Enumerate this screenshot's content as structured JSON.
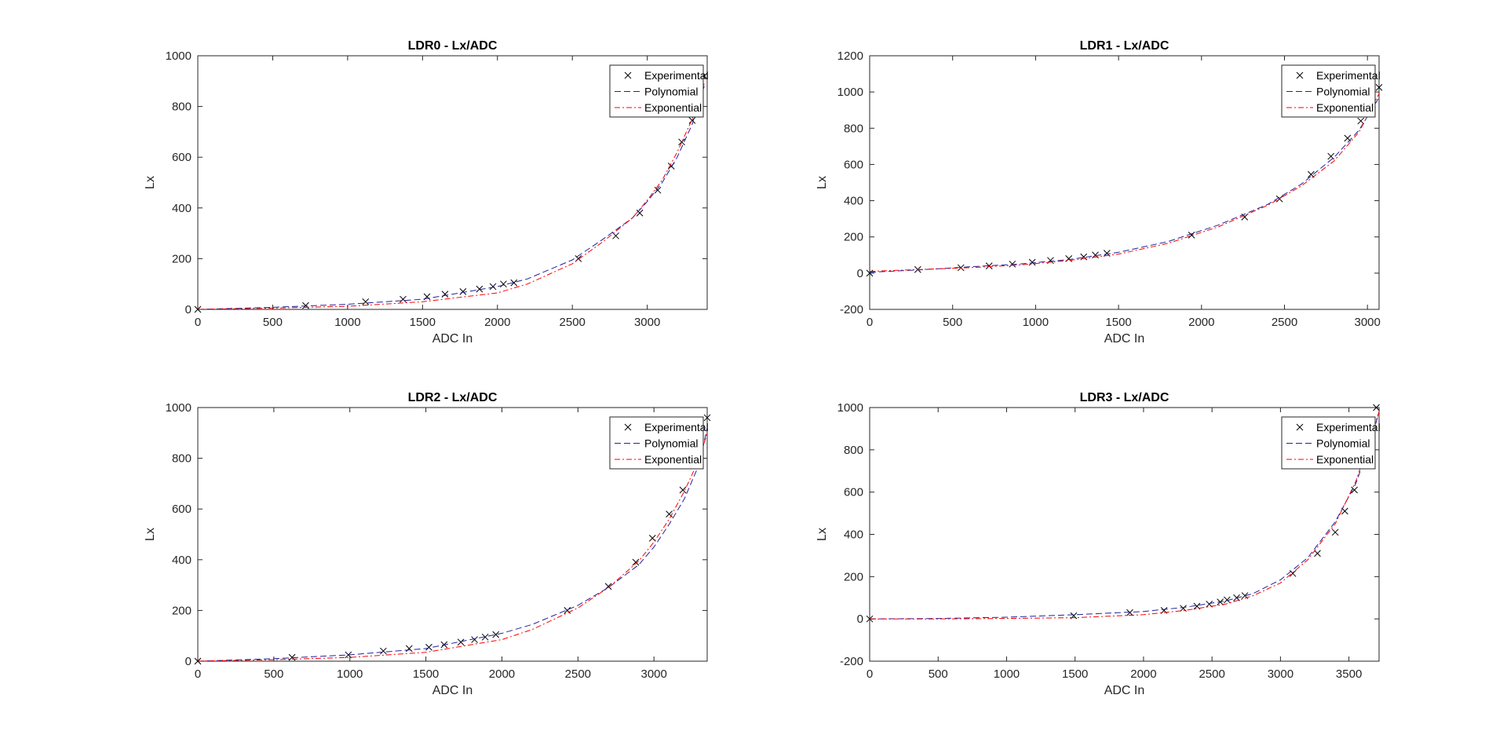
{
  "figure": {
    "background": "#ffffff"
  },
  "legend": {
    "entries": [
      "Experimental",
      "Polynomial",
      "Exponential"
    ],
    "location": "top-right"
  },
  "style": {
    "experimental_color": "#000000",
    "polynomial_color": "#2020a0",
    "exponential_color": "#ff0000",
    "axis_color": "#262626"
  },
  "chart_data": [
    {
      "type": "line",
      "title": "LDR0 - Lx/ADC",
      "xlabel": "ADC In",
      "ylabel": "Lx",
      "xlim": [
        0,
        3400
      ],
      "ylim": [
        0,
        1000
      ],
      "xticks": [
        0,
        500,
        1000,
        1500,
        2000,
        2500,
        3000
      ],
      "yticks": [
        0,
        200,
        400,
        600,
        800,
        1000
      ],
      "grid": false,
      "series": [
        {
          "name": "Experimental",
          "style": "markers-x",
          "x": [
            0,
            720,
            1120,
            1370,
            1530,
            1650,
            1770,
            1880,
            1970,
            2040,
            2110,
            2540,
            2790,
            2950,
            3070,
            3160,
            3230,
            3300,
            3350,
            3380
          ],
          "y": [
            0,
            15,
            30,
            40,
            50,
            60,
            70,
            80,
            90,
            100,
            105,
            200,
            290,
            380,
            470,
            565,
            660,
            745,
            845,
            920
          ]
        },
        {
          "name": "Polynomial",
          "style": "dashed",
          "x": [
            0,
            500,
            1000,
            1500,
            2000,
            2200,
            2500,
            2700,
            2900,
            3000,
            3100,
            3200,
            3300,
            3380
          ],
          "y": [
            0,
            8,
            20,
            40,
            90,
            120,
            195,
            275,
            360,
            425,
            500,
            600,
            730,
            880
          ]
        },
        {
          "name": "Exponential",
          "style": "dashdot",
          "x": [
            0,
            500,
            1000,
            1500,
            2000,
            2200,
            2500,
            2700,
            2900,
            3000,
            3100,
            3200,
            3300,
            3380
          ],
          "y": [
            0,
            5,
            12,
            30,
            65,
            100,
            180,
            265,
            360,
            430,
            510,
            620,
            750,
            890
          ]
        }
      ]
    },
    {
      "type": "line",
      "title": "LDR1 - Lx/ADC",
      "xlabel": "ADC In",
      "ylabel": "Lx",
      "xlim": [
        0,
        3070
      ],
      "ylim": [
        -200,
        1200
      ],
      "xticks": [
        0,
        500,
        1000,
        1500,
        2000,
        2500,
        3000
      ],
      "yticks": [
        -200,
        0,
        200,
        400,
        600,
        800,
        1000,
        1200
      ],
      "grid": false,
      "series": [
        {
          "name": "Experimental",
          "style": "markers-x",
          "x": [
            0,
            290,
            550,
            720,
            860,
            980,
            1090,
            1200,
            1290,
            1360,
            1430,
            1940,
            2260,
            2470,
            2660,
            2780,
            2880,
            2960,
            3030,
            3070
          ],
          "y": [
            0,
            20,
            30,
            40,
            50,
            60,
            70,
            80,
            90,
            100,
            110,
            210,
            310,
            410,
            545,
            645,
            745,
            840,
            930,
            1025
          ]
        },
        {
          "name": "Polynomial",
          "style": "dashed",
          "x": [
            0,
            300,
            600,
            900,
            1200,
            1500,
            1800,
            2100,
            2400,
            2600,
            2800,
            2950,
            3070
          ],
          "y": [
            5,
            18,
            35,
            50,
            75,
            115,
            175,
            265,
            380,
            490,
            640,
            790,
            970
          ]
        },
        {
          "name": "Exponential",
          "style": "dashdot",
          "x": [
            0,
            300,
            600,
            900,
            1200,
            1500,
            1800,
            2100,
            2400,
            2600,
            2800,
            2950,
            3070
          ],
          "y": [
            10,
            20,
            30,
            45,
            70,
            105,
            165,
            255,
            375,
            480,
            620,
            780,
            990
          ]
        }
      ]
    },
    {
      "type": "line",
      "title": "LDR2 - Lx/ADC",
      "xlabel": "ADC In",
      "ylabel": "Lx",
      "xlim": [
        0,
        3350
      ],
      "ylim": [
        0,
        1000
      ],
      "xticks": [
        0,
        500,
        1000,
        1500,
        2000,
        2500,
        3000
      ],
      "yticks": [
        0,
        200,
        400,
        600,
        800,
        1000
      ],
      "grid": false,
      "series": [
        {
          "name": "Experimental",
          "style": "markers-x",
          "x": [
            0,
            620,
            990,
            1220,
            1390,
            1520,
            1620,
            1730,
            1820,
            1890,
            1960,
            2430,
            2700,
            2880,
            2990,
            3100,
            3190,
            3300,
            3350
          ],
          "y": [
            0,
            15,
            25,
            40,
            50,
            55,
            65,
            75,
            85,
            95,
            105,
            200,
            295,
            390,
            485,
            580,
            675,
            875,
            960
          ]
        },
        {
          "name": "Polynomial",
          "style": "dashed",
          "x": [
            0,
            500,
            1000,
            1500,
            2000,
            2200,
            2500,
            2700,
            2900,
            3000,
            3100,
            3200,
            3300,
            3350
          ],
          "y": [
            0,
            10,
            25,
            50,
            110,
            145,
            220,
            290,
            380,
            450,
            540,
            640,
            780,
            920
          ]
        },
        {
          "name": "Exponential",
          "style": "dashdot",
          "x": [
            0,
            500,
            1000,
            1500,
            2000,
            2200,
            2500,
            2700,
            2900,
            3000,
            3100,
            3200,
            3300,
            3350
          ],
          "y": [
            0,
            6,
            15,
            35,
            85,
            125,
            210,
            290,
            395,
            470,
            560,
            670,
            800,
            900
          ]
        }
      ]
    },
    {
      "type": "line",
      "title": "LDR3 - Lx/ADC",
      "xlabel": "ADC In",
      "ylabel": "Lx",
      "xlim": [
        0,
        3720
      ],
      "ylim": [
        -200,
        1000
      ],
      "xticks": [
        0,
        500,
        1000,
        1500,
        2000,
        2500,
        3000,
        3500
      ],
      "yticks": [
        -200,
        0,
        200,
        400,
        600,
        800,
        1000
      ],
      "grid": false,
      "series": [
        {
          "name": "Experimental",
          "style": "markers-x",
          "x": [
            0,
            1490,
            1900,
            2150,
            2290,
            2390,
            2480,
            2560,
            2610,
            2680,
            2740,
            3090,
            3270,
            3400,
            3470,
            3540,
            3630,
            3670,
            3700
          ],
          "y": [
            0,
            15,
            30,
            40,
            50,
            60,
            70,
            80,
            90,
            100,
            110,
            215,
            310,
            410,
            510,
            610,
            815,
            910,
            1000
          ]
        },
        {
          "name": "Polynomial",
          "style": "dashed",
          "x": [
            0,
            500,
            1000,
            1500,
            2000,
            2300,
            2600,
            2800,
            3000,
            3200,
            3400,
            3550,
            3650,
            3720
          ],
          "y": [
            0,
            2,
            8,
            20,
            35,
            55,
            85,
            120,
            185,
            290,
            460,
            640,
            820,
            980
          ]
        },
        {
          "name": "Exponential",
          "style": "dashdot",
          "x": [
            0,
            500,
            1000,
            1500,
            2000,
            2300,
            2600,
            2800,
            3000,
            3200,
            3400,
            3550,
            3650,
            3720
          ],
          "y": [
            0,
            0,
            2,
            6,
            20,
            40,
            70,
            110,
            170,
            280,
            450,
            650,
            840,
            980
          ]
        }
      ]
    }
  ]
}
